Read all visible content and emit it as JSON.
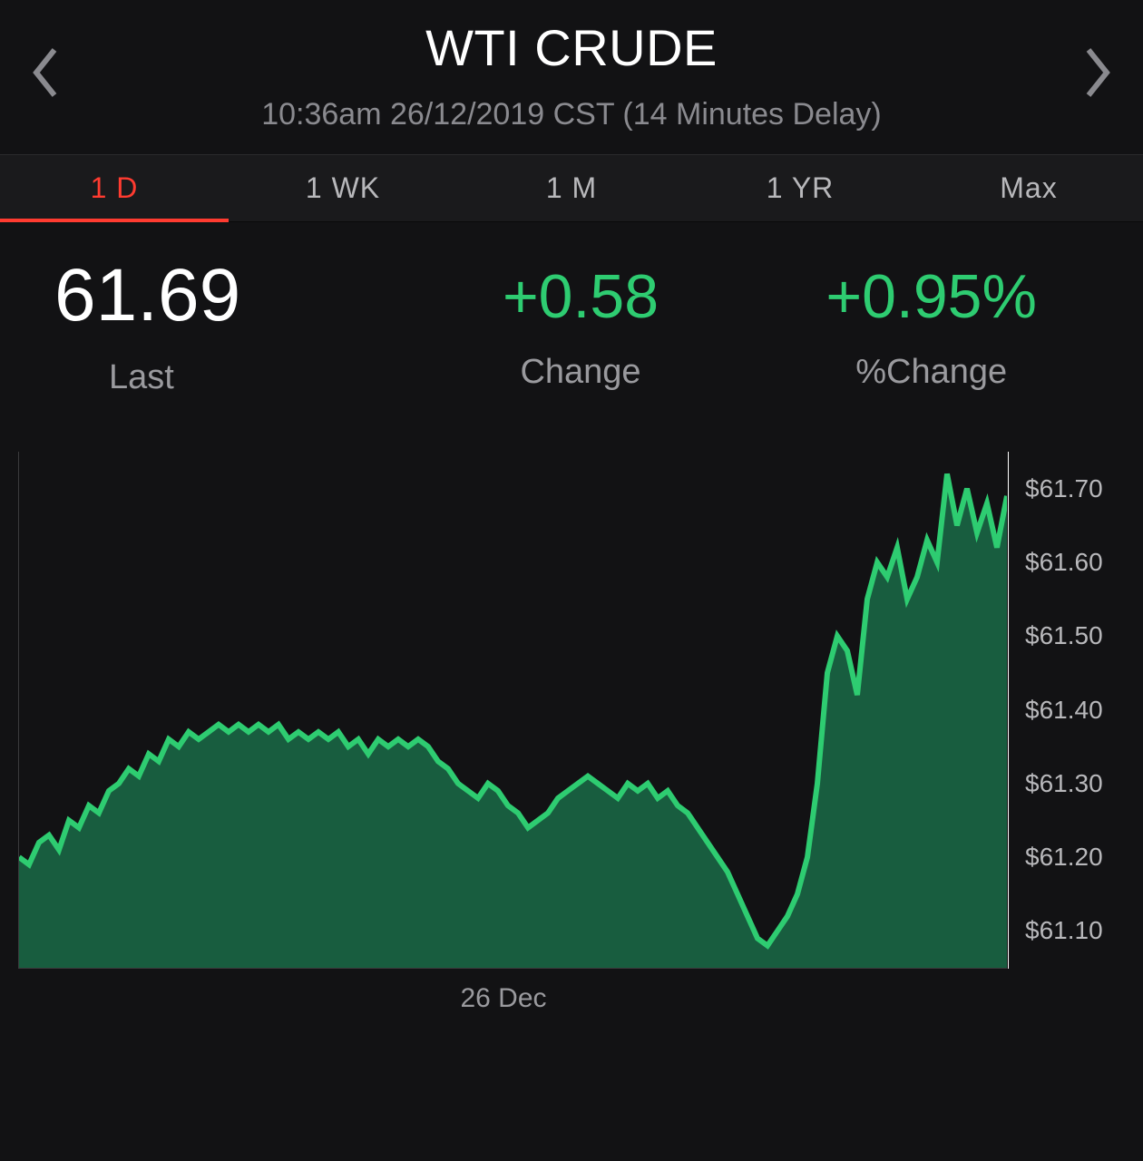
{
  "header": {
    "title": "WTI CRUDE",
    "subtitle": "10:36am 26/12/2019 CST (14 Minutes Delay)"
  },
  "tabs": [
    {
      "label": "1 D",
      "active": true
    },
    {
      "label": "1 WK",
      "active": false
    },
    {
      "label": "1 M",
      "active": false
    },
    {
      "label": "1 YR",
      "active": false
    },
    {
      "label": "Max",
      "active": false
    }
  ],
  "stats": {
    "last_value": "61.69",
    "last_label": "Last",
    "change_value": "+0.58",
    "change_label": "Change",
    "pct_change_value": "+0.95%",
    "pct_change_label": "%Change"
  },
  "chart": {
    "type": "area",
    "x_label": "26 Dec",
    "ylim": [
      61.05,
      61.75
    ],
    "y_ticks": [
      "$61.70",
      "$61.60",
      "$61.50",
      "$61.40",
      "$61.30",
      "$61.20",
      "$61.10"
    ],
    "y_tick_values": [
      61.7,
      61.6,
      61.5,
      61.4,
      61.3,
      61.2,
      61.1
    ],
    "line_color": "#2ecc71",
    "fill_color": "#1a6b47",
    "fill_opacity": 0.85,
    "line_width": 2,
    "background_color": "#121214",
    "positive_color": "#2ecc71",
    "active_tab_color": "#ff3b30",
    "text_muted_color": "#8a8a8f",
    "data": [
      61.2,
      61.19,
      61.22,
      61.23,
      61.21,
      61.25,
      61.24,
      61.27,
      61.26,
      61.29,
      61.3,
      61.32,
      61.31,
      61.34,
      61.33,
      61.36,
      61.35,
      61.37,
      61.36,
      61.37,
      61.38,
      61.37,
      61.38,
      61.37,
      61.38,
      61.37,
      61.38,
      61.36,
      61.37,
      61.36,
      61.37,
      61.36,
      61.37,
      61.35,
      61.36,
      61.34,
      61.36,
      61.35,
      61.36,
      61.35,
      61.36,
      61.35,
      61.33,
      61.32,
      61.3,
      61.29,
      61.28,
      61.3,
      61.29,
      61.27,
      61.26,
      61.24,
      61.25,
      61.26,
      61.28,
      61.29,
      61.3,
      61.31,
      61.3,
      61.29,
      61.28,
      61.3,
      61.29,
      61.3,
      61.28,
      61.29,
      61.27,
      61.26,
      61.24,
      61.22,
      61.2,
      61.18,
      61.15,
      61.12,
      61.09,
      61.08,
      61.1,
      61.12,
      61.15,
      61.2,
      61.3,
      61.45,
      61.5,
      61.48,
      61.42,
      61.55,
      61.6,
      61.58,
      61.62,
      61.55,
      61.58,
      61.63,
      61.6,
      61.72,
      61.65,
      61.7,
      61.64,
      61.68,
      61.62,
      61.69
    ]
  }
}
